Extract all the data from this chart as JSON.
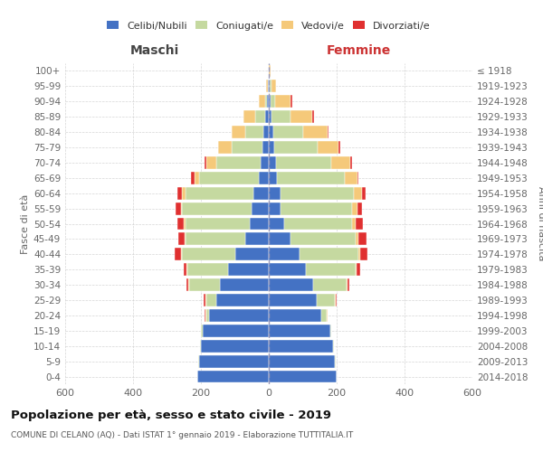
{
  "age_groups": [
    "0-4",
    "5-9",
    "10-14",
    "15-19",
    "20-24",
    "25-29",
    "30-34",
    "35-39",
    "40-44",
    "45-49",
    "50-54",
    "55-59",
    "60-64",
    "65-69",
    "70-74",
    "75-79",
    "80-84",
    "85-89",
    "90-94",
    "95-99",
    "100+"
  ],
  "birth_years": [
    "2014-2018",
    "2009-2013",
    "2004-2008",
    "1999-2003",
    "1994-1998",
    "1989-1993",
    "1984-1988",
    "1979-1983",
    "1974-1978",
    "1969-1973",
    "1964-1968",
    "1959-1963",
    "1954-1958",
    "1949-1953",
    "1944-1948",
    "1939-1943",
    "1934-1938",
    "1929-1933",
    "1924-1928",
    "1919-1923",
    "≤ 1918"
  ],
  "male_celibi": [
    210,
    205,
    200,
    195,
    175,
    155,
    145,
    120,
    100,
    70,
    55,
    50,
    45,
    30,
    25,
    20,
    15,
    10,
    5,
    2,
    0
  ],
  "male_coniugati": [
    0,
    2,
    2,
    5,
    10,
    30,
    90,
    120,
    155,
    175,
    190,
    205,
    200,
    175,
    130,
    90,
    55,
    30,
    5,
    0,
    0
  ],
  "male_vedovi": [
    0,
    0,
    0,
    0,
    2,
    2,
    2,
    2,
    3,
    3,
    5,
    5,
    10,
    15,
    30,
    40,
    40,
    35,
    20,
    5,
    0
  ],
  "male_divorziati": [
    0,
    0,
    0,
    0,
    2,
    5,
    5,
    10,
    20,
    20,
    20,
    15,
    15,
    10,
    5,
    0,
    0,
    0,
    0,
    0,
    0
  ],
  "female_celibi": [
    200,
    195,
    190,
    180,
    155,
    140,
    130,
    110,
    90,
    65,
    45,
    35,
    35,
    25,
    20,
    15,
    12,
    8,
    4,
    2,
    0
  ],
  "female_coniugati": [
    0,
    2,
    2,
    5,
    15,
    55,
    100,
    145,
    175,
    190,
    200,
    210,
    215,
    200,
    165,
    130,
    90,
    55,
    15,
    5,
    0
  ],
  "female_vedovi": [
    0,
    0,
    0,
    0,
    2,
    2,
    3,
    3,
    5,
    8,
    12,
    15,
    25,
    35,
    55,
    60,
    70,
    65,
    45,
    15,
    5
  ],
  "female_divorziati": [
    0,
    0,
    0,
    0,
    0,
    3,
    5,
    10,
    20,
    25,
    20,
    15,
    10,
    5,
    5,
    5,
    5,
    5,
    5,
    0,
    0
  ],
  "color_celibi": "#4472c4",
  "color_coniugati": "#c5d9a0",
  "color_vedovi": "#f5c97a",
  "color_divorziati": "#e03030",
  "title": "Popolazione per età, sesso e stato civile - 2019",
  "subtitle": "COMUNE DI CELANO (AQ) - Dati ISTAT 1° gennaio 2019 - Elaborazione TUTTITALIA.IT",
  "xlabel_left": "Maschi",
  "xlabel_right": "Femmine",
  "ylabel_left": "Fasce di età",
  "ylabel_right": "Anni di nascita",
  "xlim": 600,
  "bg_color": "#ffffff",
  "grid_color": "#cccccc"
}
